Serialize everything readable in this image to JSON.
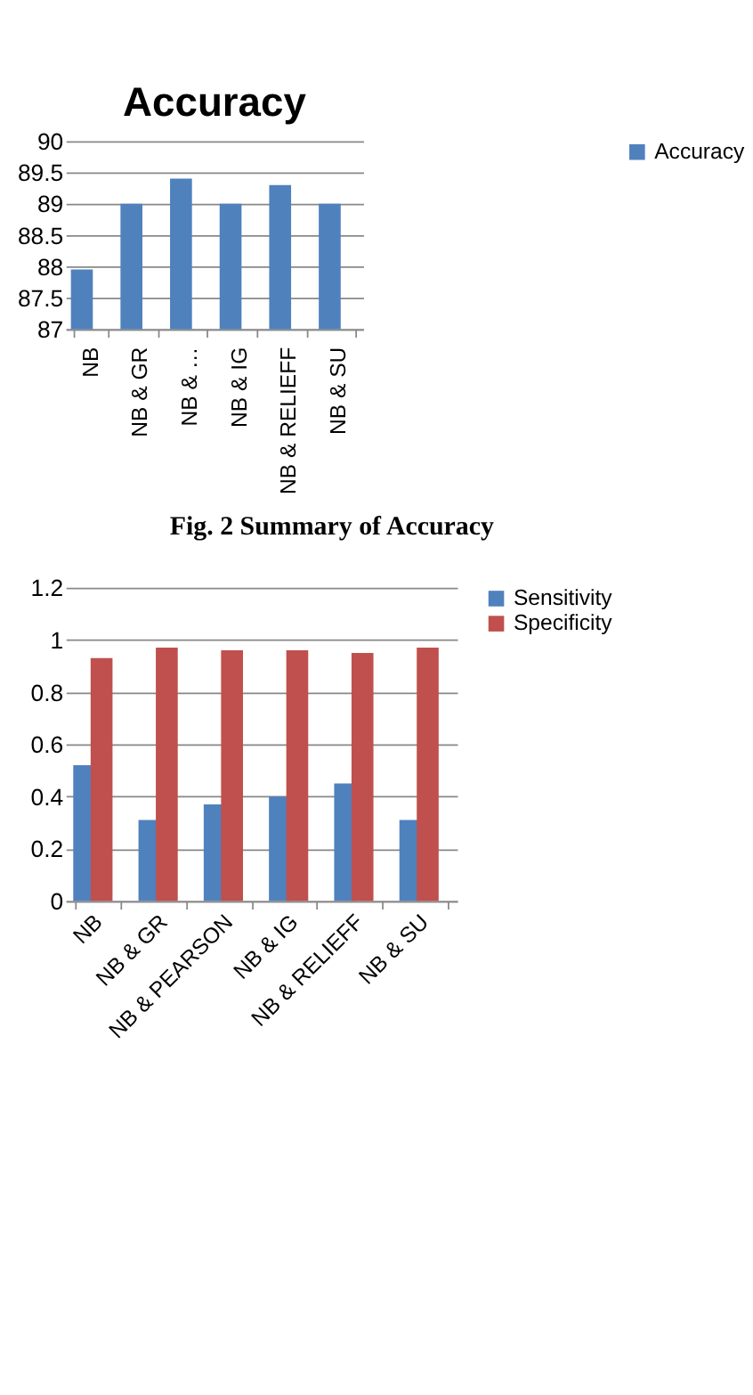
{
  "chart_data": [
    {
      "type": "bar",
      "title": "Accuracy",
      "categories": [
        "NB",
        "NB & GR",
        "NB & …",
        "NB & IG",
        "NB & RELIEFF",
        "NB & SU"
      ],
      "series": [
        {
          "name": "Accuracy",
          "color": "#4f81bd",
          "values": [
            87.95,
            89,
            89.4,
            89,
            89.3,
            89
          ]
        }
      ],
      "ylim": [
        87,
        90
      ],
      "yticks": [
        87,
        87.5,
        88,
        88.5,
        89,
        89.5,
        90
      ],
      "grid": "y",
      "legend": "right",
      "annotations": [
        "Fig. 2 Summary of Accuracy"
      ]
    },
    {
      "type": "bar",
      "categories": [
        "NB",
        "NB & GR",
        "NB & PEARSON",
        "NB & IG",
        "NB & RELIEFF",
        "NB & SU"
      ],
      "series": [
        {
          "name": "Sensitivity",
          "color": "#4f81bd",
          "values": [
            0.52,
            0.31,
            0.37,
            0.4,
            0.45,
            0.31
          ]
        },
        {
          "name": "Specificity",
          "color": "#c0504d",
          "values": [
            0.93,
            0.97,
            0.96,
            0.96,
            0.95,
            0.97
          ]
        }
      ],
      "ylim": [
        0,
        1.2
      ],
      "yticks": [
        0,
        0.2,
        0.4,
        0.6,
        0.8,
        1,
        1.2
      ],
      "grid": "y",
      "legend": "right"
    }
  ]
}
